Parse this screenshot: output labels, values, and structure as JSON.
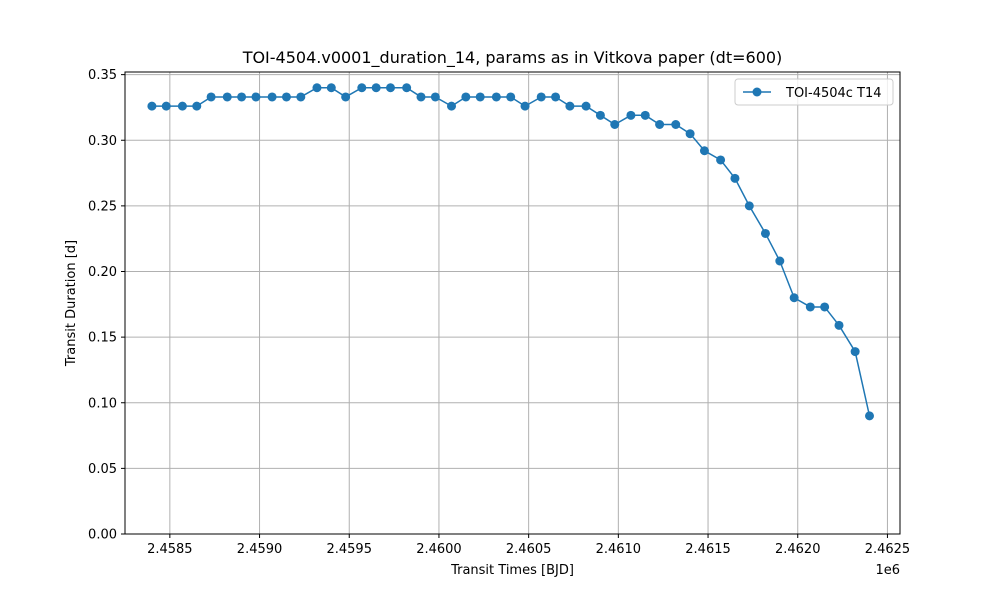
{
  "chart_data": {
    "type": "line",
    "title": "TOI-4504.v0001_duration_14, params as in Vitkova paper (dt=600)",
    "xlabel": "Transit Times [BJD]",
    "ylabel": "Transit Duration [d]",
    "x_offset_label": "1e6",
    "xlim": [
      2.45825,
      2.46257
    ],
    "ylim": [
      0,
      0.352
    ],
    "x_ticks": [
      2.4585,
      2.459,
      2.4595,
      2.46,
      2.4605,
      2.461,
      2.4615,
      2.462,
      2.4625
    ],
    "x_tick_labels": [
      "2.4585",
      "2.4590",
      "2.4595",
      "2.4600",
      "2.4605",
      "2.4610",
      "2.4615",
      "2.4620",
      "2.4625"
    ],
    "y_ticks": [
      0,
      0.05,
      0.1,
      0.15,
      0.2,
      0.25,
      0.3,
      0.35
    ],
    "y_tick_labels": [
      "0.00",
      "0.05",
      "0.10",
      "0.15",
      "0.20",
      "0.25",
      "0.30",
      "0.35"
    ],
    "grid": true,
    "legend_position": "top-right",
    "series": [
      {
        "name": "TOI-4504c T14",
        "color": "#1f77b4",
        "marker": "circle",
        "x": [
          2.4584,
          2.45848,
          2.45857,
          2.45865,
          2.45873,
          2.45882,
          2.4589,
          2.45898,
          2.45907,
          2.45915,
          2.45923,
          2.45932,
          2.4594,
          2.45948,
          2.45957,
          2.45965,
          2.45973,
          2.45982,
          2.4599,
          2.45998,
          2.46007,
          2.46015,
          2.46023,
          2.46032,
          2.4604,
          2.46048,
          2.46057,
          2.46065,
          2.46073,
          2.46082,
          2.4609,
          2.46098,
          2.46107,
          2.46115,
          2.46123,
          2.46132,
          2.4614,
          2.46148,
          2.46157,
          2.46165,
          2.46173,
          2.46182,
          2.4619,
          2.46198,
          2.46207,
          2.46215,
          2.46223,
          2.46232,
          2.4624
        ],
        "values": [
          0.326,
          0.326,
          0.326,
          0.326,
          0.333,
          0.333,
          0.333,
          0.333,
          0.333,
          0.333,
          0.333,
          0.34,
          0.34,
          0.333,
          0.34,
          0.34,
          0.34,
          0.34,
          0.333,
          0.333,
          0.326,
          0.333,
          0.333,
          0.333,
          0.333,
          0.326,
          0.333,
          0.333,
          0.326,
          0.326,
          0.319,
          0.312,
          0.319,
          0.319,
          0.312,
          0.312,
          0.305,
          0.292,
          0.285,
          0.271,
          0.25,
          0.229,
          0.208,
          0.18,
          0.173,
          0.173,
          0.159,
          0.139,
          0.09
        ]
      }
    ]
  }
}
